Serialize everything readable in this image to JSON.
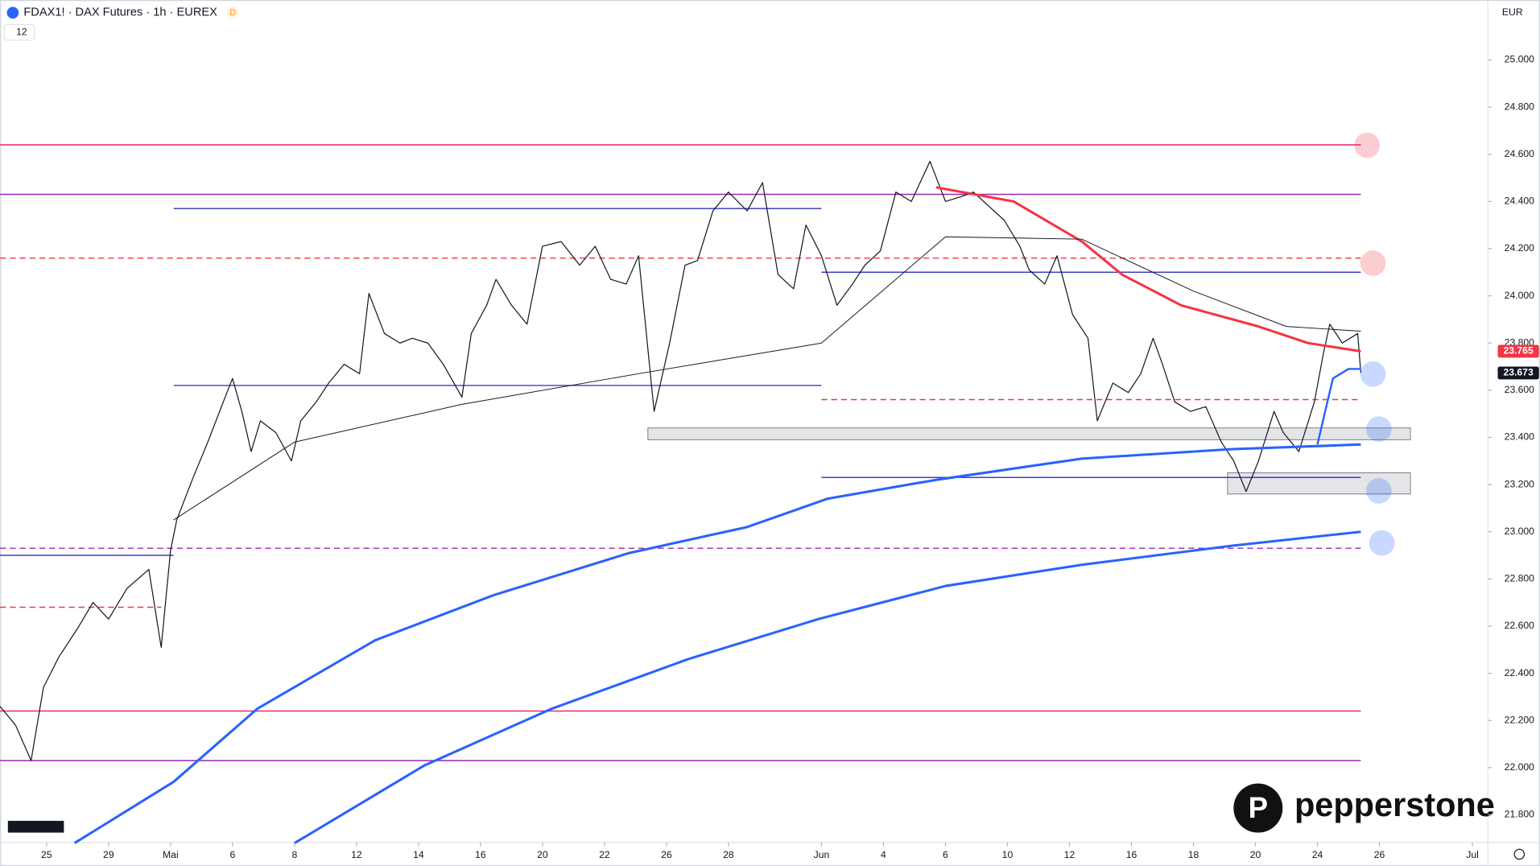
{
  "header": {
    "symbol": "FDAX1! · DAX Futures · 1h · EUREX",
    "badge": "D",
    "indicators": "12",
    "currency": "EUR",
    "brand": "pepperstone"
  },
  "chart_data": {
    "type": "line",
    "ylim": [
      21683,
      25254
    ],
    "yticks": [
      {
        "value": 21800,
        "label": "21.800"
      },
      {
        "value": 22000,
        "label": "22.000"
      },
      {
        "value": 22200,
        "label": "22.200"
      },
      {
        "value": 22400,
        "label": "22.400"
      },
      {
        "value": 22600,
        "label": "22.600"
      },
      {
        "value": 22800,
        "label": "22.800"
      },
      {
        "value": 23000,
        "label": "23.000"
      },
      {
        "value": 23200,
        "label": "23.200"
      },
      {
        "value": 23400,
        "label": "23.400"
      },
      {
        "value": 23600,
        "label": "23.600"
      },
      {
        "value": 23800,
        "label": "23.800"
      },
      {
        "value": 24000,
        "label": "24.000"
      },
      {
        "value": 24200,
        "label": "24.200"
      },
      {
        "value": 24400,
        "label": "24.400"
      },
      {
        "value": 24600,
        "label": "24.600"
      },
      {
        "value": 24800,
        "label": "24.800"
      },
      {
        "value": 25000,
        "label": "25.000"
      }
    ],
    "xlim": [
      -1.5,
      46.5
    ],
    "xticks": [
      {
        "value": 0,
        "label": "25"
      },
      {
        "value": 2,
        "label": "29"
      },
      {
        "value": 4,
        "label": "Mai"
      },
      {
        "value": 6,
        "label": "6"
      },
      {
        "value": 8,
        "label": "8"
      },
      {
        "value": 10,
        "label": "12"
      },
      {
        "value": 12,
        "label": "14"
      },
      {
        "value": 14,
        "label": "16"
      },
      {
        "value": 16,
        "label": "20"
      },
      {
        "value": 18,
        "label": "22"
      },
      {
        "value": 20,
        "label": "26"
      },
      {
        "value": 22,
        "label": "28"
      },
      {
        "value": 25,
        "label": "Jun"
      },
      {
        "value": 27,
        "label": "4"
      },
      {
        "value": 29,
        "label": "6"
      },
      {
        "value": 31,
        "label": "10"
      },
      {
        "value": 33,
        "label": "12"
      },
      {
        "value": 35,
        "label": "16"
      },
      {
        "value": 37,
        "label": "18"
      },
      {
        "value": 39,
        "label": "20"
      },
      {
        "value": 41,
        "label": "24"
      },
      {
        "value": 43,
        "label": "26"
      },
      {
        "value": 46,
        "label": "Jul"
      }
    ],
    "series": [
      {
        "color": "#131722",
        "width": 1,
        "x": [
          -1.5,
          -1.0,
          -0.5,
          -0.1,
          0.4,
          1.0,
          1.5,
          2.0,
          2.6,
          3.3,
          3.7,
          4.0,
          4.2,
          4.7,
          5.2,
          5.7,
          6.0,
          6.3,
          6.6,
          6.9,
          7.4,
          7.9,
          8.2,
          8.7,
          9.1,
          9.6,
          10.1,
          10.4,
          10.9,
          11.4,
          11.8,
          12.3,
          12.8,
          13.4,
          13.7,
          14.2,
          14.5,
          15.0,
          15.5,
          16.0,
          16.6,
          17.2,
          17.7,
          18.2,
          18.7,
          19.1,
          19.6,
          20.1,
          20.6,
          21.0,
          21.5,
          22.0,
          22.6,
          23.1,
          23.6,
          24.1,
          24.5,
          25.0,
          25.5,
          26.0,
          26.4,
          26.9,
          27.4,
          27.9,
          28.5,
          29.0,
          29.5,
          29.9,
          30.4,
          30.9,
          31.4,
          31.7,
          32.2,
          32.6,
          33.1,
          33.6,
          33.9,
          34.4,
          34.9,
          35.3,
          35.7,
          36.0,
          36.4,
          36.9,
          37.4,
          37.9,
          38.3,
          38.7,
          39.1,
          39.6,
          39.9,
          40.4,
          40.9,
          41.2,
          41.4,
          41.8,
          42.3,
          42.4
        ],
        "values": [
          22260,
          22180,
          22030,
          22340,
          22470,
          22590,
          22700,
          22630,
          22760,
          22840,
          22510,
          22920,
          23050,
          23220,
          23380,
          23550,
          23650,
          23510,
          23340,
          23470,
          23420,
          23300,
          23470,
          23550,
          23630,
          23710,
          23670,
          24010,
          23840,
          23800,
          23820,
          23800,
          23710,
          23570,
          23840,
          23960,
          24070,
          23960,
          23880,
          24210,
          24230,
          24130,
          24210,
          24070,
          24050,
          24170,
          23510,
          23800,
          24130,
          24150,
          24360,
          24440,
          24360,
          24480,
          24090,
          24030,
          24300,
          24170,
          23960,
          24050,
          24130,
          24190,
          24440,
          24400,
          24570,
          24400,
          24420,
          24440,
          24380,
          24320,
          24210,
          24110,
          24050,
          24170,
          23920,
          23820,
          23470,
          23630,
          23590,
          23670,
          23820,
          23710,
          23550,
          23510,
          23530,
          23380,
          23300,
          23170,
          23300,
          23510,
          23420,
          23340,
          23550,
          23760,
          23880,
          23800,
          23840,
          23673
        ]
      },
      {
        "color": "#2962ff",
        "width": 2.5,
        "x": [
          0.9,
          4.1,
          6.8,
          10.6,
          14.4,
          18.8,
          22.6,
          25.2,
          28.7,
          33.4,
          38.2,
          42.4
        ],
        "values": [
          21680,
          21940,
          22250,
          22540,
          22730,
          22910,
          23020,
          23140,
          23220,
          23310,
          23350,
          23370
        ]
      },
      {
        "color": "#2962ff",
        "width": 2.5,
        "x": [
          8.0,
          12.2,
          16.3,
          20.7,
          24.9,
          29.0,
          33.4,
          38.2,
          42.4
        ],
        "values": [
          21680,
          22010,
          22250,
          22460,
          22630,
          22770,
          22860,
          22940,
          23000
        ]
      },
      {
        "color": "#2962ff",
        "width": 2,
        "x": [
          41.0,
          41.5,
          42.0,
          42.4
        ],
        "values": [
          23370,
          23650,
          23690,
          23690
        ]
      },
      {
        "color": "#f23645",
        "width": 2.5,
        "x": [
          28.7,
          31.2,
          33.4,
          34.7,
          36.6,
          39.1,
          40.7,
          42.4
        ],
        "values": [
          24460,
          24400,
          24230,
          24090,
          23960,
          23870,
          23800,
          23765
        ]
      },
      {
        "color": "#131722",
        "width": 0.8,
        "x": [
          4.1,
          8.0,
          13.4,
          19.1,
          25.0,
          29.0,
          33.4,
          37.0,
          40.0,
          42.4
        ],
        "values": [
          23050,
          23380,
          23540,
          23670,
          23800,
          24250,
          24240,
          24020,
          23870,
          23850
        ]
      }
    ],
    "levels": [
      {
        "value": 24640,
        "color": "#e91e63",
        "dashed": false,
        "x": [
          -1.5,
          42.4
        ]
      },
      {
        "value": 24430,
        "color": "#9c27b0",
        "dashed": false,
        "x": [
          -1.5,
          42.4
        ]
      },
      {
        "value": 24370,
        "color": "#3f3fbf",
        "dashed": false,
        "x": [
          4.1,
          25.0
        ]
      },
      {
        "value": 24160,
        "color": "#f23645",
        "dashed": true,
        "x": [
          -1.5,
          42.4
        ]
      },
      {
        "value": 24100,
        "color": "#3f3fbf",
        "dashed": false,
        "x": [
          25.0,
          42.4
        ]
      },
      {
        "value": 23620,
        "color": "#3f3fbf",
        "dashed": false,
        "x": [
          4.1,
          25.0
        ]
      },
      {
        "value": 23560,
        "color": "#f23645",
        "dashed": true,
        "x": [
          25.0,
          42.4
        ]
      },
      {
        "value": 23230,
        "color": "#3f3fbf",
        "dashed": false,
        "x": [
          25.0,
          42.4
        ]
      },
      {
        "value": 22930,
        "color": "#9c27b0",
        "dashed": true,
        "x": [
          -1.5,
          42.4
        ]
      },
      {
        "value": 22900,
        "color": "#3f3fbf",
        "dashed": false,
        "x": [
          -1.5,
          4.1
        ]
      },
      {
        "value": 22680,
        "color": "#f23645",
        "dashed": true,
        "x": [
          -1.5,
          3.7
        ]
      },
      {
        "value": 22240,
        "color": "#e91e63",
        "dashed": false,
        "x": [
          -1.5,
          42.4
        ]
      },
      {
        "value": 22030,
        "color": "#9c27b0",
        "dashed": false,
        "x": [
          -1.5,
          42.4
        ]
      }
    ],
    "zones": [
      {
        "range": [
          23390,
          23440
        ],
        "x": [
          19.4,
          44.0
        ]
      },
      {
        "range": [
          23160,
          23250
        ],
        "x": [
          38.1,
          44.0
        ]
      }
    ],
    "price_labels": [
      {
        "value": 23765,
        "label": "23.765",
        "color": "#f23645"
      },
      {
        "value": 23673,
        "label": "23.673",
        "color": "#131722"
      }
    ]
  }
}
